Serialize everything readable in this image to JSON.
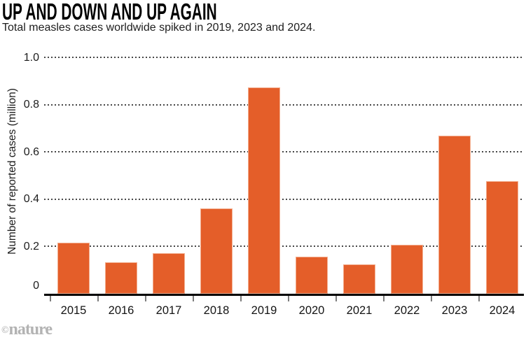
{
  "header": {
    "title": "UP AND DOWN AND UP AGAIN",
    "subtitle": "Total measles cases worldwide spiked in 2019, 2023 and 2024."
  },
  "chart_data": {
    "type": "bar",
    "title": "UP AND DOWN AND UP AGAIN",
    "subtitle": "Total measles cases worldwide spiked in 2019, 2023 and 2024.",
    "categories": [
      "2015",
      "2016",
      "2017",
      "2018",
      "2019",
      "2020",
      "2021",
      "2022",
      "2023",
      "2024"
    ],
    "values": [
      0.215,
      0.133,
      0.173,
      0.36,
      0.873,
      0.158,
      0.123,
      0.206,
      0.67,
      0.475
    ],
    "xlabel": "",
    "ylabel": "Number of reported cases (million)",
    "ylim": [
      0,
      1.0
    ],
    "yticks": [
      0,
      0.2,
      0.4,
      0.6,
      0.8,
      1.0
    ],
    "ytick_labels": [
      "0",
      "0.2",
      "0.4",
      "0.6",
      "0.8",
      "1.0"
    ],
    "grid": "horizontal-dotted",
    "legend": "none",
    "bar_color": "#e45e29"
  },
  "footer": {
    "credit_symbol": "©",
    "credit_name": "nature"
  },
  "colors": {
    "bar": "#e45e29",
    "axis": "#000000",
    "grid_dot": "#474747",
    "tick_mark": "#7d7d7d",
    "text": "#1d1d1d",
    "credit": "#b3b3b3"
  }
}
